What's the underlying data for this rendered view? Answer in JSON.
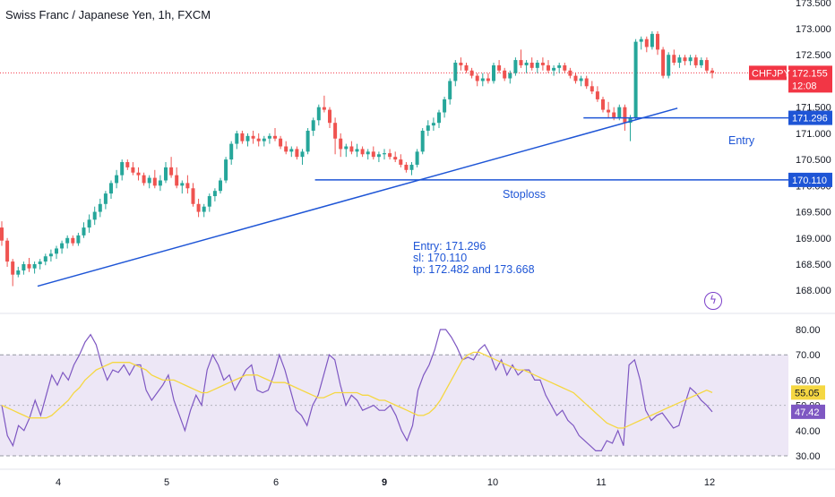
{
  "title": "Swiss Franc / Japanese Yen, 1h, FXCM",
  "note_lines": [
    "Entry: 171.296",
    "sl: 170.110",
    "tp: 172.482 and 173.668"
  ],
  "entry_label": "Entry",
  "stoploss_label": "Stoploss",
  "alert_icon": "lightning-bolt-icon",
  "colors": {
    "up": "#26a69a",
    "down": "#ef5350",
    "drawing": "#1e55d6",
    "rsi_line": "#7e57c2",
    "rsi_ma": "#f5d742",
    "rsi_band": "#ede7f6",
    "price_tag": "#f23645",
    "price_line": "#f23645"
  },
  "chart_data": [
    {
      "type": "candlestick",
      "symbol": "CHFJPY",
      "current_price": "172.155",
      "countdown": "12:08",
      "y_ticks": [
        "173.500",
        "173.000",
        "172.500",
        "172.000",
        "171.500",
        "171.000",
        "170.500",
        "170.000",
        "169.500",
        "169.000",
        "168.500",
        "168.000"
      ],
      "ylim": [
        167.8,
        173.55
      ],
      "price_tags": [
        {
          "name": "entry",
          "value": 171.296,
          "label": "171.296"
        },
        {
          "name": "stoploss",
          "value": 170.11,
          "label": "170.110"
        }
      ],
      "trendline": {
        "start": [
          0.8,
          168.08
        ],
        "end": [
          15.1,
          171.48
        ]
      },
      "stoploss_line": {
        "start": [
          7.0,
          170.11
        ],
        "end": [
          15.1,
          170.11
        ],
        "value": 170.11
      },
      "entry_line": {
        "start": [
          13.0,
          171.296
        ],
        "end": [
          14.55,
          171.296
        ],
        "value": 171.296
      },
      "ohlc": [
        [
          169.2,
          169.32,
          168.85,
          168.95
        ],
        [
          168.95,
          169.0,
          168.45,
          168.55
        ],
        [
          168.55,
          168.6,
          168.08,
          168.3
        ],
        [
          168.3,
          168.45,
          168.25,
          168.38
        ],
        [
          168.38,
          168.55,
          168.3,
          168.5
        ],
        [
          168.5,
          168.62,
          168.35,
          168.42
        ],
        [
          168.42,
          168.55,
          168.32,
          168.5
        ],
        [
          168.5,
          168.6,
          168.4,
          168.55
        ],
        [
          168.55,
          168.7,
          168.48,
          168.65
        ],
        [
          168.65,
          168.78,
          168.55,
          168.7
        ],
        [
          168.7,
          168.85,
          168.6,
          168.8
        ],
        [
          168.8,
          168.95,
          168.7,
          168.9
        ],
        [
          168.9,
          169.05,
          168.8,
          169.0
        ],
        [
          169.0,
          169.05,
          168.85,
          168.9
        ],
        [
          168.9,
          169.1,
          168.85,
          169.05
        ],
        [
          169.05,
          169.3,
          169.0,
          169.2
        ],
        [
          169.2,
          169.45,
          169.1,
          169.35
        ],
        [
          169.35,
          169.6,
          169.25,
          169.5
        ],
        [
          169.5,
          169.75,
          169.4,
          169.65
        ],
        [
          169.65,
          169.9,
          169.55,
          169.85
        ],
        [
          169.85,
          170.1,
          169.75,
          170.05
        ],
        [
          170.05,
          170.3,
          169.95,
          170.2
        ],
        [
          170.2,
          170.5,
          170.1,
          170.45
        ],
        [
          170.45,
          170.5,
          170.3,
          170.35
        ],
        [
          170.35,
          170.45,
          170.2,
          170.25
        ],
        [
          170.25,
          170.35,
          170.1,
          170.2
        ],
        [
          170.2,
          170.25,
          170.0,
          170.05
        ],
        [
          170.05,
          170.2,
          169.95,
          170.15
        ],
        [
          170.15,
          170.3,
          169.95,
          170.0
        ],
        [
          170.0,
          170.2,
          169.9,
          170.1
        ],
        [
          170.1,
          170.45,
          170.05,
          170.35
        ],
        [
          170.35,
          170.55,
          170.15,
          170.2
        ],
        [
          170.2,
          170.35,
          169.95,
          170.0
        ],
        [
          170.0,
          170.1,
          169.85,
          170.05
        ],
        [
          170.05,
          170.2,
          169.85,
          169.95
        ],
        [
          169.95,
          170.05,
          169.6,
          169.65
        ],
        [
          169.65,
          169.75,
          169.4,
          169.5
        ],
        [
          169.5,
          169.65,
          169.4,
          169.6
        ],
        [
          169.6,
          169.85,
          169.5,
          169.8
        ],
        [
          169.8,
          169.95,
          169.7,
          169.9
        ],
        [
          169.9,
          170.15,
          169.85,
          170.1
        ],
        [
          170.1,
          170.55,
          170.05,
          170.5
        ],
        [
          170.5,
          170.85,
          170.4,
          170.8
        ],
        [
          170.8,
          171.05,
          170.7,
          171.0
        ],
        [
          171.0,
          171.05,
          170.8,
          170.85
        ],
        [
          170.85,
          171.0,
          170.75,
          170.95
        ],
        [
          170.95,
          171.05,
          170.8,
          170.9
        ],
        [
          170.9,
          171.0,
          170.75,
          170.85
        ],
        [
          170.85,
          170.95,
          170.75,
          170.9
        ],
        [
          170.9,
          171.0,
          170.8,
          170.95
        ],
        [
          170.95,
          171.1,
          170.85,
          170.9
        ],
        [
          170.9,
          170.95,
          170.7,
          170.75
        ],
        [
          170.75,
          170.85,
          170.6,
          170.65
        ],
        [
          170.65,
          170.75,
          170.55,
          170.7
        ],
        [
          170.7,
          170.75,
          170.5,
          170.55
        ],
        [
          170.55,
          170.7,
          170.4,
          170.65
        ],
        [
          170.65,
          171.1,
          170.6,
          171.05
        ],
        [
          171.05,
          171.3,
          170.95,
          171.25
        ],
        [
          171.25,
          171.55,
          171.15,
          171.5
        ],
        [
          171.5,
          171.72,
          171.4,
          171.45
        ],
        [
          171.45,
          171.5,
          171.1,
          171.2
        ],
        [
          171.2,
          171.3,
          170.6,
          170.9
        ],
        [
          170.9,
          171.0,
          170.55,
          170.7
        ],
        [
          170.7,
          170.8,
          170.55,
          170.75
        ],
        [
          170.75,
          170.85,
          170.6,
          170.65
        ],
        [
          170.65,
          170.8,
          170.55,
          170.7
        ],
        [
          170.7,
          170.75,
          170.55,
          170.6
        ],
        [
          170.6,
          170.7,
          170.5,
          170.65
        ],
        [
          170.65,
          170.75,
          170.5,
          170.55
        ],
        [
          170.55,
          170.65,
          170.45,
          170.6
        ],
        [
          170.6,
          170.7,
          170.5,
          170.62
        ],
        [
          170.62,
          170.7,
          170.5,
          170.55
        ],
        [
          170.55,
          170.65,
          170.45,
          170.5
        ],
        [
          170.5,
          170.6,
          170.35,
          170.4
        ],
        [
          170.4,
          170.45,
          170.25,
          170.3
        ],
        [
          170.3,
          170.45,
          170.2,
          170.4
        ],
        [
          170.4,
          170.7,
          170.35,
          170.65
        ],
        [
          170.65,
          171.1,
          170.6,
          171.05
        ],
        [
          171.05,
          171.25,
          170.95,
          171.15
        ],
        [
          171.15,
          171.3,
          171.05,
          171.2
        ],
        [
          171.2,
          171.45,
          171.1,
          171.4
        ],
        [
          171.4,
          171.7,
          171.3,
          171.65
        ],
        [
          171.65,
          172.05,
          171.55,
          172.0
        ],
        [
          172.0,
          172.4,
          171.9,
          172.35
        ],
        [
          172.35,
          172.45,
          172.2,
          172.3
        ],
        [
          172.3,
          172.35,
          172.15,
          172.2
        ],
        [
          172.2,
          172.25,
          172.05,
          172.1
        ],
        [
          172.1,
          172.15,
          171.9,
          172.0
        ],
        [
          172.0,
          172.15,
          171.9,
          172.05
        ],
        [
          172.05,
          172.15,
          171.95,
          172.0
        ],
        [
          172.0,
          172.35,
          171.95,
          172.3
        ],
        [
          172.3,
          172.4,
          172.15,
          172.2
        ],
        [
          172.2,
          172.25,
          172.0,
          172.05
        ],
        [
          172.05,
          172.2,
          171.95,
          172.15
        ],
        [
          172.15,
          172.45,
          172.1,
          172.4
        ],
        [
          172.4,
          172.6,
          172.25,
          172.3
        ],
        [
          172.3,
          172.4,
          172.15,
          172.35
        ],
        [
          172.35,
          172.45,
          172.2,
          172.25
        ],
        [
          172.25,
          172.4,
          172.15,
          172.35
        ],
        [
          172.35,
          172.45,
          172.2,
          172.3
        ],
        [
          172.3,
          172.4,
          172.15,
          172.2
        ],
        [
          172.2,
          172.3,
          172.1,
          172.25
        ],
        [
          172.25,
          172.35,
          172.15,
          172.3
        ],
        [
          172.3,
          172.35,
          172.15,
          172.2
        ],
        [
          172.2,
          172.25,
          172.05,
          172.1
        ],
        [
          172.1,
          172.15,
          171.95,
          172.0
        ],
        [
          172.0,
          172.1,
          171.9,
          172.05
        ],
        [
          172.05,
          172.1,
          171.85,
          171.9
        ],
        [
          171.9,
          172.0,
          171.75,
          171.8
        ],
        [
          171.8,
          171.9,
          171.6,
          171.65
        ],
        [
          171.65,
          171.7,
          171.4,
          171.45
        ],
        [
          171.45,
          171.6,
          171.3,
          171.4
        ],
        [
          171.4,
          171.5,
          171.25,
          171.3
        ],
        [
          171.3,
          171.55,
          171.25,
          171.5
        ],
        [
          171.5,
          171.55,
          171.05,
          171.2
        ],
        [
          171.2,
          171.35,
          170.85,
          171.3
        ],
        [
          171.3,
          172.8,
          171.25,
          172.75
        ],
        [
          172.75,
          172.85,
          172.6,
          172.8
        ],
        [
          172.8,
          172.85,
          172.55,
          172.65
        ],
        [
          172.65,
          172.95,
          172.6,
          172.9
        ],
        [
          172.9,
          172.95,
          172.5,
          172.6
        ],
        [
          172.6,
          172.65,
          172.05,
          172.1
        ],
        [
          172.1,
          172.55,
          172.05,
          172.5
        ],
        [
          172.5,
          172.6,
          172.3,
          172.35
        ],
        [
          172.35,
          172.5,
          172.25,
          172.45
        ],
        [
          172.45,
          172.5,
          172.3,
          172.38
        ],
        [
          172.38,
          172.5,
          172.3,
          172.45
        ],
        [
          172.45,
          172.5,
          172.25,
          172.3
        ],
        [
          172.3,
          172.45,
          172.25,
          172.4
        ],
        [
          172.4,
          172.45,
          172.15,
          172.2
        ],
        [
          172.2,
          172.25,
          172.05,
          172.155
        ]
      ]
    },
    {
      "type": "line",
      "name": "RSI",
      "y_ticks": [
        "80.00",
        "70.00",
        "60.00",
        "50.00",
        "40.00",
        "30.00"
      ],
      "ylim": [
        29,
        82
      ],
      "band": [
        30,
        70
      ],
      "midline": 50,
      "rsi_value_label": "47.42",
      "ma_value_label": "55.05",
      "series": [
        {
          "role": "rsi",
          "values": [
            50,
            38,
            34,
            42,
            40,
            45,
            52,
            46,
            54,
            62,
            58,
            63,
            60,
            66,
            70,
            75,
            78,
            74,
            66,
            60,
            64,
            63,
            66,
            62,
            66,
            66,
            56,
            52,
            55,
            58,
            62,
            52,
            46,
            40,
            48,
            54,
            50,
            64,
            70,
            66,
            60,
            62,
            56,
            60,
            64,
            66,
            56,
            55,
            56,
            62,
            70,
            64,
            56,
            48,
            46,
            42,
            50,
            54,
            62,
            70,
            68,
            58,
            50,
            54,
            52,
            48,
            49,
            50,
            48,
            48,
            50,
            46,
            40,
            36,
            42,
            56,
            62,
            66,
            72,
            80,
            80,
            77,
            73,
            68,
            69,
            68,
            72,
            74,
            70,
            64,
            68,
            62,
            66,
            62,
            64,
            64,
            60,
            60,
            54,
            50,
            46,
            48,
            44,
            42,
            38,
            36,
            34,
            32,
            32,
            36,
            35,
            40,
            34,
            66,
            68,
            60,
            48,
            44,
            46,
            47,
            44,
            41,
            42,
            50,
            57,
            55,
            52,
            50,
            47.42
          ]
        },
        {
          "role": "ma",
          "values": [
            50,
            49,
            48,
            47,
            46,
            45,
            45,
            45,
            45,
            46,
            48,
            50,
            52,
            55,
            57,
            60,
            62,
            64,
            65,
            66,
            67,
            67,
            67,
            67,
            66,
            65,
            64,
            62,
            61,
            60,
            60,
            60,
            59,
            58,
            57,
            56,
            55,
            55,
            56,
            57,
            58,
            59,
            60,
            61,
            62,
            62,
            62,
            61,
            60,
            59,
            59,
            59,
            58,
            57,
            56,
            55,
            54,
            53,
            53,
            54,
            55,
            55,
            55,
            55,
            55,
            54,
            54,
            53,
            52,
            52,
            51,
            50,
            49,
            48,
            47,
            46,
            46,
            47,
            49,
            52,
            56,
            60,
            64,
            68,
            70,
            71,
            71,
            70,
            69,
            68,
            67,
            66,
            65,
            64,
            64,
            63,
            62,
            61,
            60,
            59,
            58,
            57,
            56,
            55,
            53,
            51,
            49,
            47,
            45,
            43,
            42,
            41,
            41,
            42,
            43,
            44,
            45,
            46,
            47,
            48,
            49,
            50,
            51,
            52,
            53,
            54,
            55,
            56,
            55.05
          ]
        }
      ]
    },
    {
      "type": "axis",
      "x_tick_labels": [
        "4",
        "5",
        "6",
        "9",
        "10",
        "11",
        "12"
      ]
    }
  ]
}
